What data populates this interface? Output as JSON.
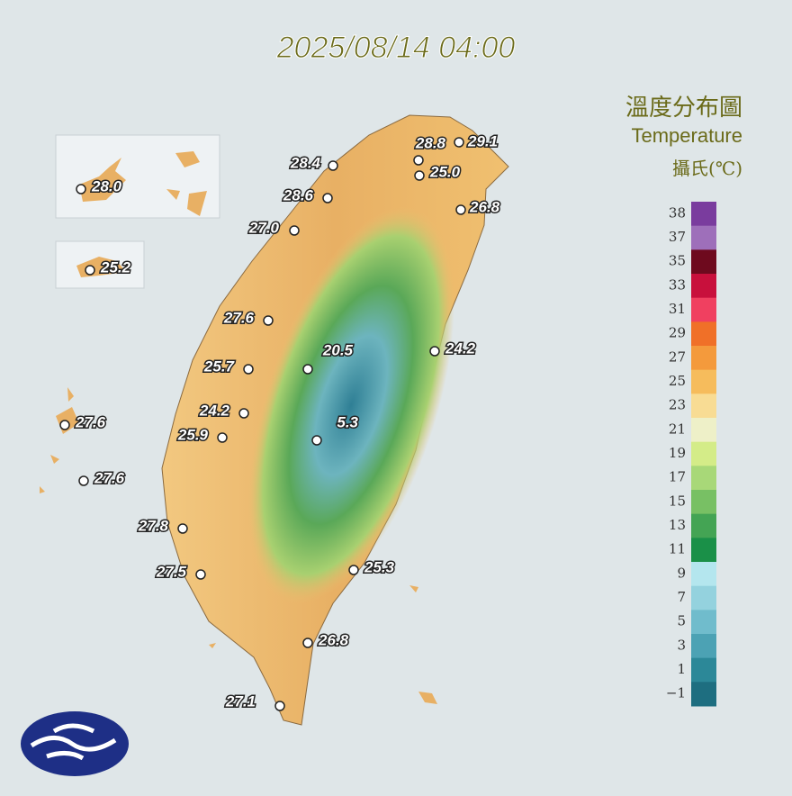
{
  "title": "2025/08/14 04:00",
  "legend": {
    "title_zh": "溫度分布圖",
    "title_en": "Temperature",
    "unit": "攝氏(℃)",
    "ticks": [
      "38",
      "37",
      "35",
      "33",
      "31",
      "29",
      "27",
      "25",
      "23",
      "21",
      "19",
      "17",
      "15",
      "13",
      "11",
      "9",
      "7",
      "5",
      "3",
      "1",
      "−1"
    ],
    "colors": [
      "#7a3c9e",
      "#9e6fba",
      "#6e0a1e",
      "#c8103c",
      "#f04060",
      "#f07028",
      "#f49a3c",
      "#f6bc5c",
      "#f8dc94",
      "#eef0c8",
      "#d4ec88",
      "#a8d878",
      "#78c064",
      "#44a454",
      "#1a9048",
      "#b4e6ee",
      "#94d2de",
      "#70bccc",
      "#4ca2b4",
      "#2c8898",
      "#1e6e80"
    ]
  },
  "stations": [
    {
      "value": "29.1"
    },
    {
      "value": "28.8"
    },
    {
      "value": "25.0"
    },
    {
      "value": "28.4"
    },
    {
      "value": "28.6"
    },
    {
      "value": "26.8"
    },
    {
      "value": "27.0"
    },
    {
      "value": "28.0"
    },
    {
      "value": "25.2"
    },
    {
      "value": "27.6"
    },
    {
      "value": "24.2"
    },
    {
      "value": "20.5"
    },
    {
      "value": "25.7"
    },
    {
      "value": "24.2"
    },
    {
      "value": "25.9"
    },
    {
      "value": "5.3"
    },
    {
      "value": "27.6"
    },
    {
      "value": "27.6"
    },
    {
      "value": "27.8"
    },
    {
      "value": "27.5"
    },
    {
      "value": "25.3"
    },
    {
      "value": "26.8"
    },
    {
      "value": "27.1"
    }
  ]
}
